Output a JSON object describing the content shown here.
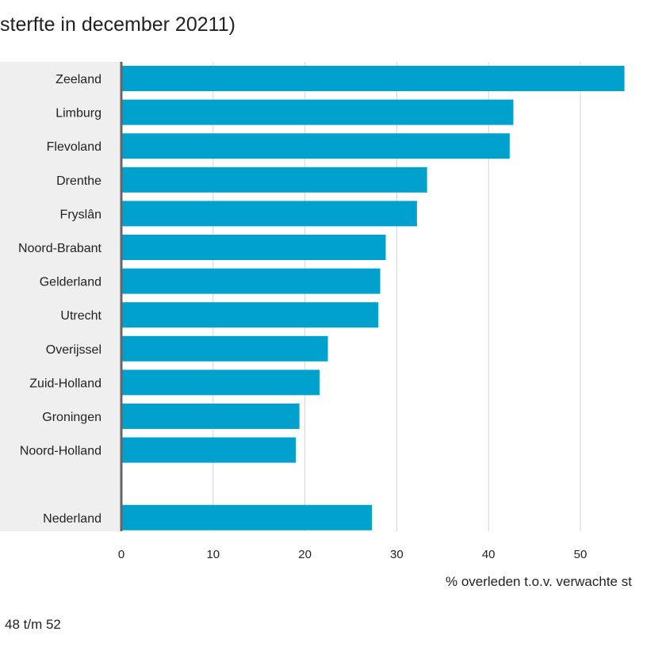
{
  "chart_data": {
    "type": "bar",
    "orientation": "horizontal",
    "title": "sterfte in december 20211)",
    "xlabel": "% overleden t.o.v. verwachte st",
    "footnote": "48 t/m 52",
    "categories": [
      "Zeeland",
      "Limburg",
      "Flevoland",
      "Drenthe",
      "Fryslân",
      "Noord-Brabant",
      "Gelderland",
      "Utrecht",
      "Overijssel",
      "Zuid-Holland",
      "Groningen",
      "Noord-Holland",
      "",
      "Nederland"
    ],
    "values": [
      54.8,
      42.7,
      42.3,
      33.3,
      32.2,
      28.8,
      28.2,
      28.0,
      22.5,
      21.6,
      19.4,
      19.0,
      null,
      27.3
    ],
    "xlim": [
      0,
      60
    ],
    "xticks": [
      "0",
      "10",
      "20",
      "30",
      "40",
      "50",
      "60"
    ],
    "grid": true,
    "colors": {
      "bar": "#00a1cd",
      "label_panel": "#efefef",
      "axis": "#666666",
      "grid": "#d4d4d4"
    }
  }
}
